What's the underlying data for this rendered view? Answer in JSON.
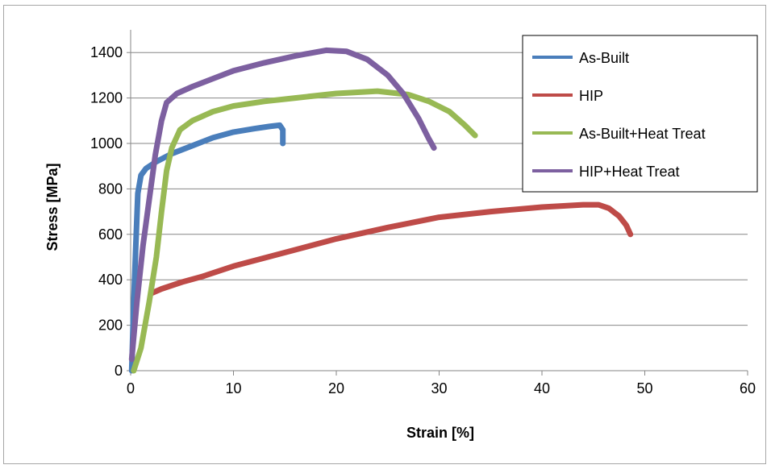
{
  "chart_data": {
    "type": "line",
    "xlabel": "Strain [%]",
    "ylabel": "Stress [MPa]",
    "xlim": [
      0,
      60
    ],
    "ylim": [
      0,
      1500
    ],
    "x_ticks": [
      0,
      10,
      20,
      30,
      40,
      50,
      60
    ],
    "y_ticks": [
      0,
      200,
      400,
      600,
      800,
      1000,
      1200,
      1400
    ],
    "grid": "horizontal",
    "legend_position": "top-right",
    "series": [
      {
        "name": "As-Built",
        "color": "#4a7ebb",
        "points": [
          [
            0.1,
            0
          ],
          [
            0.3,
            300
          ],
          [
            0.5,
            550
          ],
          [
            0.7,
            780
          ],
          [
            1.0,
            860
          ],
          [
            1.5,
            890
          ],
          [
            2.5,
            920
          ],
          [
            4,
            955
          ],
          [
            6,
            990
          ],
          [
            8,
            1025
          ],
          [
            10,
            1050
          ],
          [
            12,
            1065
          ],
          [
            13.5,
            1075
          ],
          [
            14.5,
            1080
          ],
          [
            14.8,
            1060
          ],
          [
            14.8,
            1000
          ]
        ]
      },
      {
        "name": "HIP",
        "color": "#be4b48",
        "points": [
          [
            2,
            340
          ],
          [
            3,
            360
          ],
          [
            5,
            390
          ],
          [
            7,
            415
          ],
          [
            10,
            460
          ],
          [
            15,
            520
          ],
          [
            20,
            580
          ],
          [
            25,
            630
          ],
          [
            30,
            675
          ],
          [
            35,
            700
          ],
          [
            40,
            720
          ],
          [
            44,
            730
          ],
          [
            45.5,
            730
          ],
          [
            46.5,
            715
          ],
          [
            47.5,
            680
          ],
          [
            48.2,
            640
          ],
          [
            48.6,
            600
          ]
        ]
      },
      {
        "name": "As-Built+Heat Treat",
        "color": "#98b954",
        "points": [
          [
            0.3,
            0
          ],
          [
            1,
            100
          ],
          [
            1.8,
            300
          ],
          [
            2.5,
            500
          ],
          [
            3,
            700
          ],
          [
            3.5,
            880
          ],
          [
            4,
            980
          ],
          [
            4.8,
            1060
          ],
          [
            6,
            1100
          ],
          [
            8,
            1140
          ],
          [
            10,
            1165
          ],
          [
            13,
            1185
          ],
          [
            16,
            1200
          ],
          [
            20,
            1220
          ],
          [
            24,
            1230
          ],
          [
            27,
            1215
          ],
          [
            29,
            1185
          ],
          [
            31,
            1140
          ],
          [
            32.5,
            1080
          ],
          [
            33.5,
            1035
          ]
        ]
      },
      {
        "name": "HIP+Heat Treat",
        "color": "#7d60a0",
        "points": [
          [
            0.1,
            50
          ],
          [
            0.6,
            300
          ],
          [
            1.2,
            550
          ],
          [
            1.8,
            750
          ],
          [
            2.4,
            950
          ],
          [
            3,
            1100
          ],
          [
            3.5,
            1180
          ],
          [
            4.5,
            1220
          ],
          [
            6,
            1250
          ],
          [
            8,
            1285
          ],
          [
            10,
            1320
          ],
          [
            13,
            1355
          ],
          [
            16,
            1385
          ],
          [
            19,
            1410
          ],
          [
            21,
            1405
          ],
          [
            23,
            1370
          ],
          [
            25,
            1300
          ],
          [
            26.5,
            1220
          ],
          [
            28,
            1110
          ],
          [
            29,
            1020
          ],
          [
            29.5,
            980
          ]
        ]
      }
    ]
  }
}
